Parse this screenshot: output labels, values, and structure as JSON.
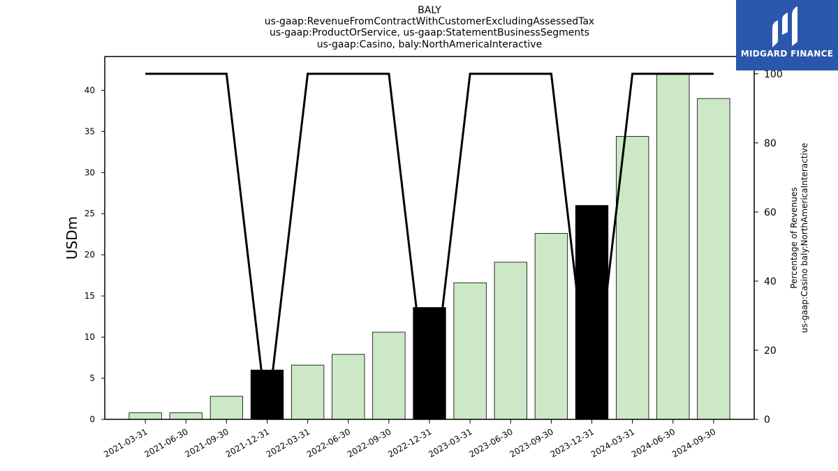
{
  "chart_data": {
    "type": "bar",
    "title_lines": [
      "BALY",
      "us-gaap:RevenueFromContractWithCustomerExcludingAssessedTax",
      "us-gaap:ProductOrService, us-gaap:StatementBusinessSegments",
      "us-gaap:Casino, baly:NorthAmericaInteractive"
    ],
    "ylabel": "USDm",
    "y2label_lines": [
      "Percentage of Revenues",
      "us-gaap:Casino baly:NorthAmericaInteractive"
    ],
    "categories": [
      "2021-03-31",
      "2021-06-30",
      "2021-09-30",
      "2021-12-31",
      "2022-03-31",
      "2022-06-30",
      "2022-09-30",
      "2022-12-31",
      "2023-03-31",
      "2023-06-30",
      "2023-09-30",
      "2023-12-31",
      "2024-03-31",
      "2024-06-30",
      "2024-09-30"
    ],
    "series": [
      {
        "type": "bar",
        "values": [
          0.8,
          0.8,
          2.8,
          6.0,
          6.6,
          7.9,
          10.6,
          13.6,
          16.6,
          19.1,
          22.6,
          26.0,
          34.4,
          42.0,
          39.0
        ],
        "colors": [
          "#cce8c6",
          "#cce8c6",
          "#cce8c6",
          "#000000",
          "#cce8c6",
          "#cce8c6",
          "#cce8c6",
          "#000000",
          "#cce8c6",
          "#cce8c6",
          "#cce8c6",
          "#000000",
          "#cce8c6",
          "#cce8c6",
          "#cce8c6"
        ]
      },
      {
        "type": "line",
        "axis": "right",
        "values": [
          100,
          100,
          100,
          0,
          100,
          100,
          100,
          0,
          100,
          100,
          100,
          0,
          100,
          100,
          100
        ]
      }
    ],
    "yticks": [
      0,
      5,
      10,
      15,
      20,
      25,
      30,
      35,
      40
    ],
    "ylim": [
      0,
      44.1
    ],
    "y2ticks": [
      0,
      20,
      40,
      60,
      80,
      100
    ],
    "y2lim": [
      0,
      105
    ],
    "grid": false,
    "line_color": "#000000"
  },
  "logo": {
    "text": "MIDGARD FINANCE"
  }
}
